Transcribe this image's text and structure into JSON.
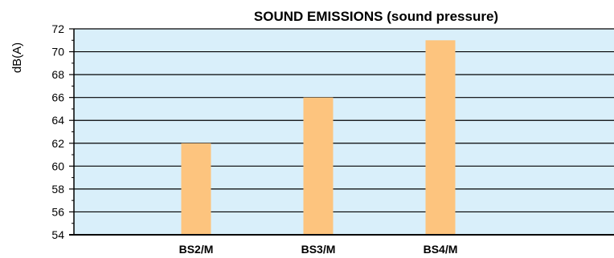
{
  "chart_data": {
    "type": "bar",
    "title": "SOUND EMISSIONS (sound pressure)",
    "ylabel": "dB(A)",
    "xlabel": "",
    "categories": [
      "BS2/M",
      "BS3/M",
      "BS4/M"
    ],
    "values": [
      62,
      66,
      71
    ],
    "ylim": [
      54,
      72
    ],
    "yticks": [
      "54",
      "56",
      "58",
      "60",
      "62",
      "64",
      "66",
      "68",
      "70",
      "72"
    ],
    "grid": true,
    "legend": "none",
    "colors": {
      "plot_background": "#d9effa",
      "bar": "#fdc47e",
      "gridline": "#000000"
    }
  }
}
